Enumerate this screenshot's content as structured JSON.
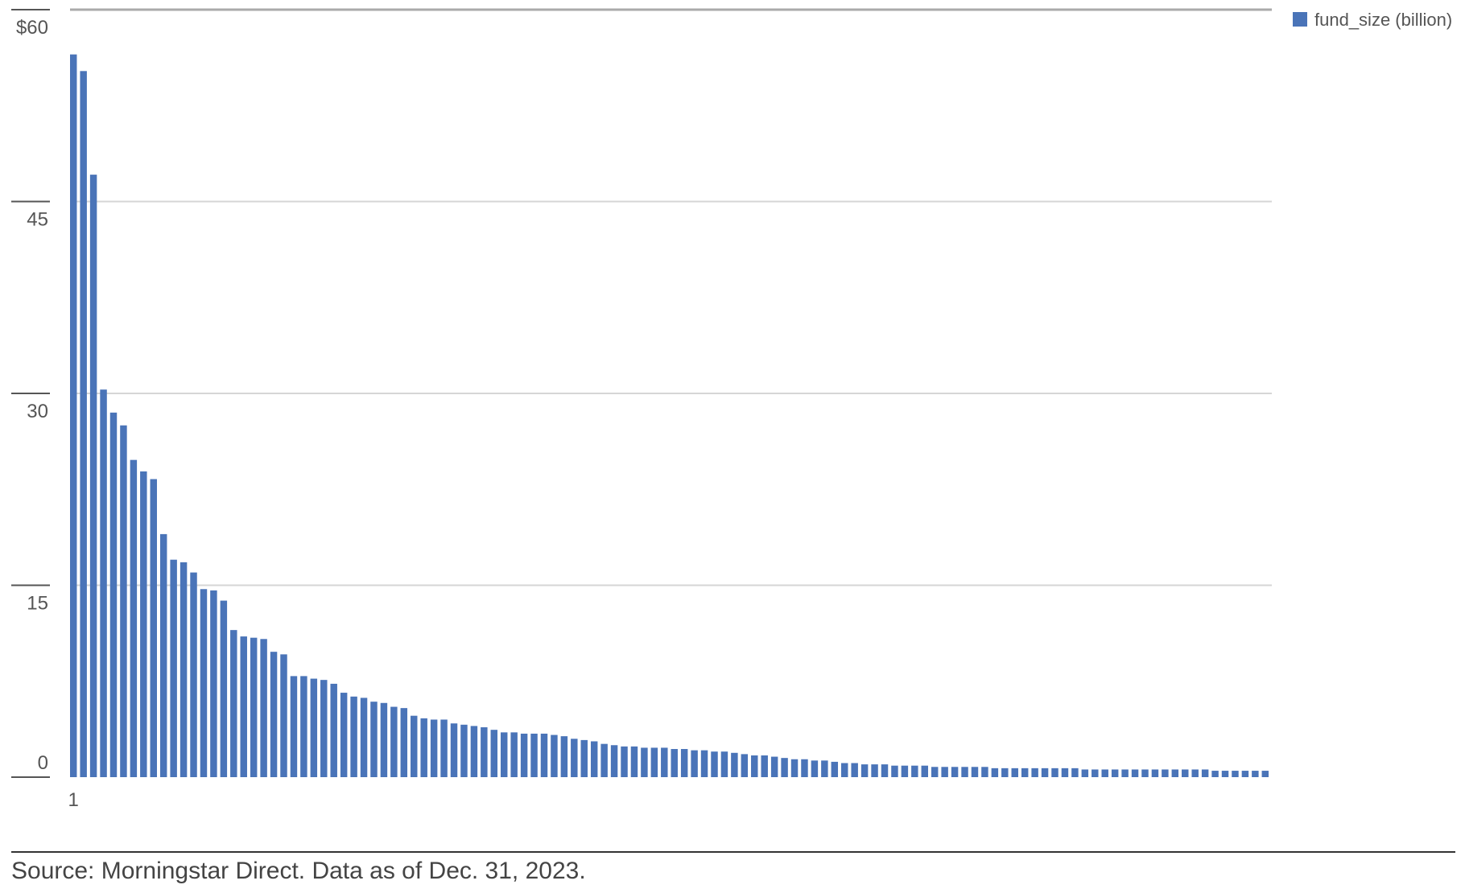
{
  "chart_data": {
    "type": "bar",
    "legend": {
      "label": "fund_size (billion)",
      "position": "top-right"
    },
    "x_tick_labels": [
      "1"
    ],
    "y_tick_labels": [
      "$60",
      "45",
      "30",
      "15",
      "0"
    ],
    "y_ticks": [
      60,
      45,
      30,
      15,
      0
    ],
    "ylim": [
      0,
      60
    ],
    "grid": true,
    "series": [
      {
        "name": "fund_size (billion)",
        "values": [
          56.5,
          55.2,
          47.1,
          30.3,
          28.5,
          27.5,
          24.8,
          23.9,
          23.3,
          19.0,
          17.0,
          16.8,
          16.0,
          14.7,
          14.6,
          13.8,
          11.5,
          11.0,
          10.9,
          10.8,
          9.8,
          9.6,
          7.9,
          7.9,
          7.7,
          7.6,
          7.3,
          6.6,
          6.3,
          6.2,
          5.9,
          5.8,
          5.5,
          5.4,
          4.8,
          4.6,
          4.5,
          4.5,
          4.2,
          4.1,
          4.0,
          3.9,
          3.7,
          3.5,
          3.5,
          3.4,
          3.4,
          3.4,
          3.3,
          3.2,
          3.0,
          2.9,
          2.8,
          2.6,
          2.5,
          2.4,
          2.4,
          2.3,
          2.3,
          2.3,
          2.2,
          2.2,
          2.1,
          2.1,
          2.0,
          2.0,
          1.9,
          1.8,
          1.7,
          1.7,
          1.6,
          1.5,
          1.4,
          1.4,
          1.3,
          1.3,
          1.2,
          1.1,
          1.1,
          1.0,
          1.0,
          1.0,
          0.9,
          0.9,
          0.9,
          0.9,
          0.8,
          0.8,
          0.8,
          0.8,
          0.8,
          0.8,
          0.7,
          0.7,
          0.7,
          0.7,
          0.7,
          0.7,
          0.7,
          0.7,
          0.7,
          0.6,
          0.6,
          0.6,
          0.6,
          0.6,
          0.6,
          0.6,
          0.6,
          0.6,
          0.6,
          0.6,
          0.6,
          0.6,
          0.5,
          0.5,
          0.5,
          0.5,
          0.5,
          0.5
        ],
        "color": "#4a74b8"
      }
    ]
  },
  "source_note": "Source: Morningstar Direct. Data as of Dec. 31, 2023.",
  "colors": {
    "bar": "#4a74b8",
    "grid": "#d6d6d6",
    "top_rule": "#aaaaaa",
    "axis_tick": "#555555"
  }
}
